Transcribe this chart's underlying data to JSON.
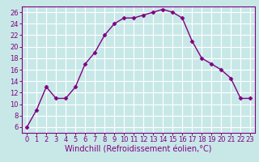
{
  "x": [
    0,
    1,
    2,
    3,
    4,
    5,
    6,
    7,
    8,
    9,
    10,
    11,
    12,
    13,
    14,
    15,
    16,
    17,
    18,
    19,
    20,
    21,
    22,
    23
  ],
  "y": [
    6,
    9,
    13,
    11,
    11,
    13,
    17,
    19,
    22,
    24,
    25,
    25,
    25.5,
    26,
    26.5,
    26,
    25,
    21,
    18,
    17,
    16,
    14.5,
    11,
    11
  ],
  "line_color": "#800080",
  "marker": "D",
  "marker_size": 2.5,
  "bg_color": "#c8e8e8",
  "grid_color": "#ffffff",
  "xlabel": "Windchill (Refroidissement éolien,°C)",
  "xlim": [
    -0.5,
    23.5
  ],
  "ylim": [
    5,
    27
  ],
  "yticks": [
    6,
    8,
    10,
    12,
    14,
    16,
    18,
    20,
    22,
    24,
    26
  ],
  "xticks": [
    0,
    1,
    2,
    3,
    4,
    5,
    6,
    7,
    8,
    9,
    10,
    11,
    12,
    13,
    14,
    15,
    16,
    17,
    18,
    19,
    20,
    21,
    22,
    23
  ],
  "tick_color": "#800080",
  "label_color": "#800080",
  "tick_fontsize": 6,
  "xlabel_fontsize": 7,
  "line_width": 1.0,
  "spine_color": "#800080"
}
